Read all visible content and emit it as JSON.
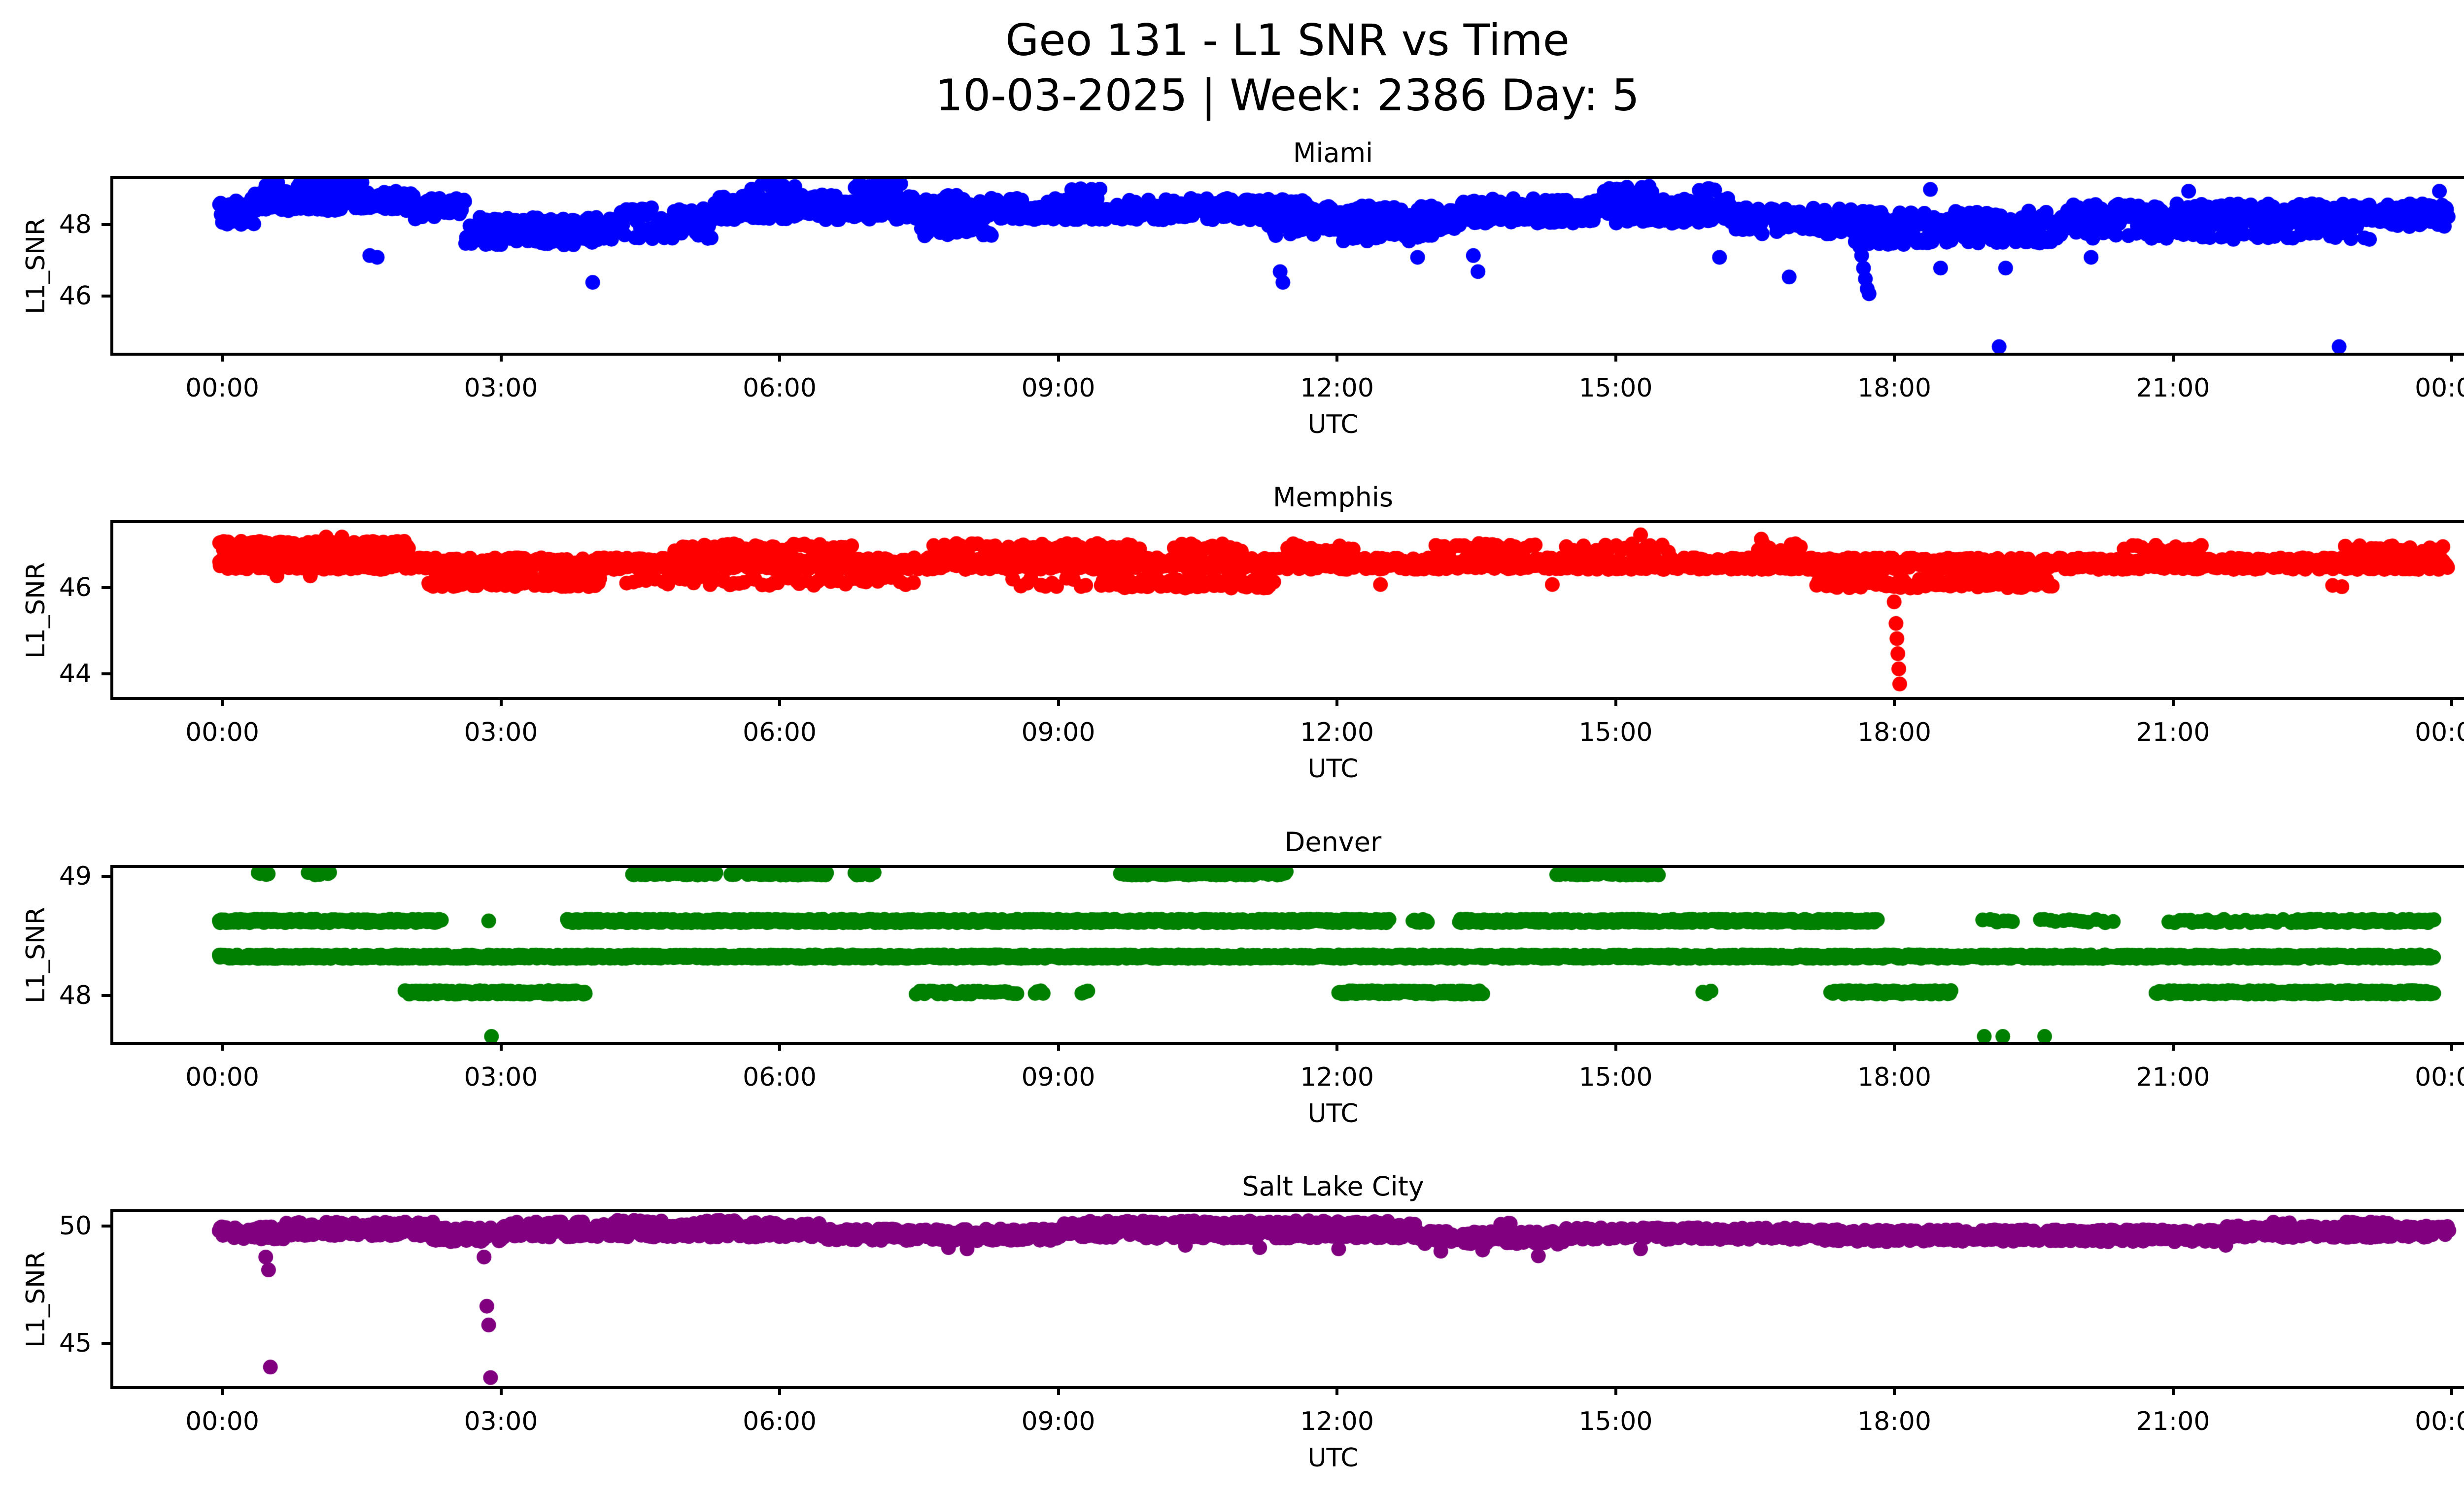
{
  "figure": {
    "title_line1": "Geo 131 - L1 SNR vs Time",
    "title_line2": "10-03-2025 | Week: 2386 Day: 5",
    "background_color": "#ffffff",
    "text_color": "#000000",
    "marker": "circle",
    "x_ticks": [
      {
        "label": "00:00",
        "hour": 0
      },
      {
        "label": "03:00",
        "hour": 3
      },
      {
        "label": "06:00",
        "hour": 6
      },
      {
        "label": "09:00",
        "hour": 9
      },
      {
        "label": "12:00",
        "hour": 12
      },
      {
        "label": "15:00",
        "hour": 15
      },
      {
        "label": "18:00",
        "hour": 18
      },
      {
        "label": "21:00",
        "hour": 21
      },
      {
        "label": "00:00",
        "hour": 24
      }
    ]
  },
  "chart_data": [
    {
      "type": "scatter",
      "title": "Miami",
      "color": "#0000ff",
      "ylabel": "L1_SNR",
      "xlabel": "UTC",
      "x_range_hours": [
        0,
        24
      ],
      "ylim": [
        44.25,
        49.28
      ],
      "yticks": [
        46,
        48
      ],
      "grid": false,
      "bands": [
        [
          0.0,
          0.38,
          47.9,
          48.6,
          0.012
        ],
        [
          0.35,
          2.1,
          48.3,
          48.85,
          0.012
        ],
        [
          0.5,
          0.64,
          48.9,
          49.15,
          0.02
        ],
        [
          0.85,
          1.55,
          48.9,
          49.16,
          0.013
        ],
        [
          2.1,
          2.65,
          48.05,
          48.65,
          0.014
        ],
        [
          2.65,
          4.2,
          47.35,
          47.95,
          0.012
        ],
        [
          2.8,
          4.1,
          48.0,
          48.12,
          0.07
        ],
        [
          4.2,
          5.3,
          47.5,
          48.4,
          0.016
        ],
        [
          5.3,
          8.05,
          48.05,
          48.75,
          0.012
        ],
        [
          5.75,
          6.2,
          48.85,
          49.05,
          0.05
        ],
        [
          6.85,
          7.35,
          48.85,
          49.1,
          0.03
        ],
        [
          8.05,
          11.75,
          48.05,
          48.65,
          0.012
        ],
        [
          7.55,
          8.35,
          47.6,
          47.85,
          0.035
        ],
        [
          9.2,
          9.55,
          48.8,
          48.95,
          0.09
        ],
        [
          11.3,
          11.8,
          47.6,
          47.9,
          0.045
        ],
        [
          11.75,
          13.35,
          47.75,
          48.45,
          0.012
        ],
        [
          12.1,
          13.1,
          47.45,
          47.7,
          0.05
        ],
        [
          13.35,
          16.3,
          47.95,
          48.65,
          0.012
        ],
        [
          14.9,
          15.45,
          48.8,
          49.0,
          0.06
        ],
        [
          15.95,
          16.12,
          48.85,
          49.0,
          0.055
        ],
        [
          16.3,
          17.6,
          47.65,
          48.4,
          0.013
        ],
        [
          17.6,
          18.3,
          47.35,
          48.3,
          0.013
        ],
        [
          18.3,
          19.9,
          47.4,
          48.3,
          0.013
        ],
        [
          19.9,
          24.0,
          47.85,
          48.5,
          0.012
        ],
        [
          20.0,
          23.2,
          47.5,
          47.72,
          0.09
        ]
      ],
      "lines": [],
      "outliers": [
        [
          1.62,
          47.05
        ],
        [
          1.7,
          47.0
        ],
        [
          4.02,
          46.3
        ],
        [
          11.42,
          46.6
        ],
        [
          11.45,
          46.3
        ],
        [
          12.9,
          47.0
        ],
        [
          13.5,
          47.05
        ],
        [
          13.55,
          46.6
        ],
        [
          16.15,
          47.0
        ],
        [
          16.9,
          46.45
        ],
        [
          17.66,
          47.3
        ],
        [
          17.68,
          47.05
        ],
        [
          17.7,
          46.7
        ],
        [
          17.72,
          46.4
        ],
        [
          17.74,
          46.12
        ],
        [
          17.76,
          45.98
        ],
        [
          18.42,
          48.9
        ],
        [
          18.53,
          46.7
        ],
        [
          19.16,
          44.5
        ],
        [
          19.23,
          46.7
        ],
        [
          20.15,
          47.0
        ],
        [
          21.2,
          48.85
        ],
        [
          22.82,
          44.5
        ],
        [
          23.9,
          48.85
        ]
      ]
    },
    {
      "type": "scatter",
      "title": "Memphis",
      "color": "#ff0000",
      "ylabel": "L1_SNR",
      "xlabel": "UTC",
      "x_range_hours": [
        0,
        24
      ],
      "ylim": [
        43.33,
        47.49
      ],
      "yticks": [
        44,
        46
      ],
      "grid": false,
      "bands": [
        [
          0.0,
          24.0,
          46.35,
          46.62,
          0.012
        ],
        [
          0.0,
          2.05,
          46.75,
          47.0,
          0.013
        ],
        [
          2.25,
          4.1,
          45.95,
          46.18,
          0.016
        ],
        [
          4.9,
          6.85,
          46.75,
          46.95,
          0.04
        ],
        [
          7.7,
          9.9,
          46.75,
          46.95,
          0.04
        ],
        [
          10.3,
          11.05,
          46.75,
          46.95,
          0.05
        ],
        [
          11.5,
          12.25,
          46.75,
          46.95,
          0.05
        ],
        [
          13.1,
          14.2,
          46.75,
          46.95,
          0.05
        ],
        [
          14.5,
          15.6,
          46.75,
          46.95,
          0.06
        ],
        [
          16.55,
          17.05,
          46.75,
          46.95,
          0.06
        ],
        [
          20.5,
          21.35,
          46.75,
          46.92,
          0.07
        ],
        [
          22.9,
          24.0,
          46.72,
          46.92,
          0.05
        ],
        [
          4.4,
          7.5,
          45.98,
          46.18,
          0.06
        ],
        [
          8.55,
          9.35,
          45.95,
          46.15,
          0.07
        ],
        [
          9.5,
          11.35,
          45.92,
          46.15,
          0.022
        ],
        [
          17.2,
          19.75,
          45.92,
          46.15,
          0.022
        ]
      ],
      "lines": [],
      "outliers": [
        [
          0.62,
          46.2
        ],
        [
          0.98,
          46.2
        ],
        [
          1.15,
          47.1
        ],
        [
          1.32,
          47.1
        ],
        [
          12.5,
          46.0
        ],
        [
          14.35,
          46.0
        ],
        [
          15.3,
          47.15
        ],
        [
          16.6,
          47.05
        ],
        [
          22.75,
          45.98
        ],
        [
          22.85,
          45.95
        ],
        [
          18.03,
          45.6
        ],
        [
          18.05,
          45.1
        ],
        [
          18.06,
          44.75
        ],
        [
          18.07,
          44.4
        ],
        [
          18.08,
          44.05
        ],
        [
          18.09,
          43.7
        ]
      ]
    },
    {
      "type": "scatter",
      "title": "Denver",
      "color": "#008000",
      "ylabel": "L1_SNR",
      "xlabel": "UTC",
      "x_range_hours": [
        0,
        24
      ],
      "ylim": [
        47.56,
        49.07
      ],
      "yticks": [
        48,
        49
      ],
      "grid": false,
      "bands": [],
      "lines": [
        {
          "v": 49.0,
          "segs": [
            [
              0.42,
              0.52,
              0.02
            ],
            [
              0.95,
              1.2,
              0.018
            ],
            [
              4.45,
              5.35,
              0.013
            ],
            [
              5.5,
              5.6,
              0.02
            ],
            [
              5.68,
              6.55,
              0.013
            ],
            [
              6.85,
              7.05,
              0.02
            ],
            [
              9.7,
              11.5,
              0.012
            ],
            [
              14.4,
              15.5,
              0.013
            ]
          ]
        },
        {
          "v": 48.6,
          "segs": [
            [
              0.0,
              2.4,
              0.012
            ],
            [
              3.75,
              12.6,
              0.011
            ],
            [
              12.85,
              13.02,
              0.02
            ],
            [
              13.35,
              17.85,
              0.011
            ],
            [
              19.0,
              19.35,
              0.05
            ],
            [
              19.6,
              20.4,
              0.06
            ],
            [
              21.0,
              22.25,
              0.05
            ],
            [
              22.3,
              23.85,
              0.016
            ]
          ]
        },
        {
          "v": 48.3,
          "segs": [
            [
              0.0,
              23.85,
              0.01
            ]
          ]
        },
        {
          "v": 48.0,
          "segs": [
            [
              2.0,
              3.95,
              0.012
            ],
            [
              7.5,
              8.6,
              0.035
            ],
            [
              8.78,
              8.88,
              0.03
            ],
            [
              9.28,
              9.38,
              0.04
            ],
            [
              12.05,
              13.6,
              0.012
            ],
            [
              15.98,
              16.08,
              0.04
            ],
            [
              17.35,
              18.65,
              0.013
            ],
            [
              20.85,
              23.85,
              0.012
            ]
          ]
        }
      ],
      "outliers": [
        [
          2.9,
          48.6
        ],
        [
          2.93,
          47.63
        ],
        [
          19.0,
          47.63
        ],
        [
          19.2,
          47.63
        ],
        [
          19.65,
          47.63
        ]
      ]
    },
    {
      "type": "scatter",
      "title": "Salt Lake City",
      "color": "#800080",
      "ylabel": "L1_SNR",
      "xlabel": "UTC",
      "x_range_hours": [
        0,
        24
      ],
      "ylim": [
        42.91,
        50.59
      ],
      "yticks": [
        45,
        50
      ],
      "grid": false,
      "bands": [
        [
          0.0,
          0.7,
          49.3,
          49.85,
          0.012
        ],
        [
          0.7,
          2.3,
          49.45,
          50.05,
          0.011
        ],
        [
          2.3,
          3.05,
          49.2,
          49.8,
          0.013
        ],
        [
          3.05,
          6.5,
          49.4,
          50.05,
          0.011
        ],
        [
          6.5,
          9.0,
          49.25,
          49.75,
          0.012
        ],
        [
          9.0,
          12.9,
          49.35,
          50.0,
          0.011
        ],
        [
          12.9,
          14.5,
          49.1,
          49.65,
          0.013
        ],
        [
          14.5,
          17.0,
          49.3,
          49.8,
          0.012
        ],
        [
          17.0,
          21.6,
          49.3,
          49.72,
          0.011
        ],
        [
          21.6,
          24.0,
          49.38,
          49.88,
          0.011
        ],
        [
          9.3,
          12.6,
          49.98,
          50.1,
          0.08
        ],
        [
          4.3,
          4.75,
          49.98,
          50.12,
          0.05
        ],
        [
          5.2,
          5.55,
          49.98,
          50.12,
          0.05
        ],
        [
          13.8,
          13.98,
          49.92,
          50.02,
          0.06
        ],
        [
          22.1,
          22.35,
          49.92,
          50.04,
          0.05
        ],
        [
          22.9,
          23.4,
          49.92,
          50.06,
          0.05
        ],
        [
          17.3,
          21.5,
          49.2,
          49.33,
          0.08
        ]
      ],
      "lines": [],
      "outliers": [
        [
          0.5,
          48.55
        ],
        [
          0.53,
          48.0
        ],
        [
          0.55,
          43.85
        ],
        [
          2.85,
          48.55
        ],
        [
          2.88,
          46.45
        ],
        [
          2.9,
          45.65
        ],
        [
          2.92,
          43.4
        ],
        [
          7.85,
          48.95
        ],
        [
          8.05,
          48.9
        ],
        [
          10.4,
          49.05
        ],
        [
          11.2,
          48.95
        ],
        [
          12.05,
          48.9
        ],
        [
          13.15,
          48.8
        ],
        [
          13.6,
          48.85
        ],
        [
          14.2,
          48.6
        ],
        [
          15.3,
          48.9
        ],
        [
          21.6,
          49.05
        ]
      ]
    }
  ]
}
